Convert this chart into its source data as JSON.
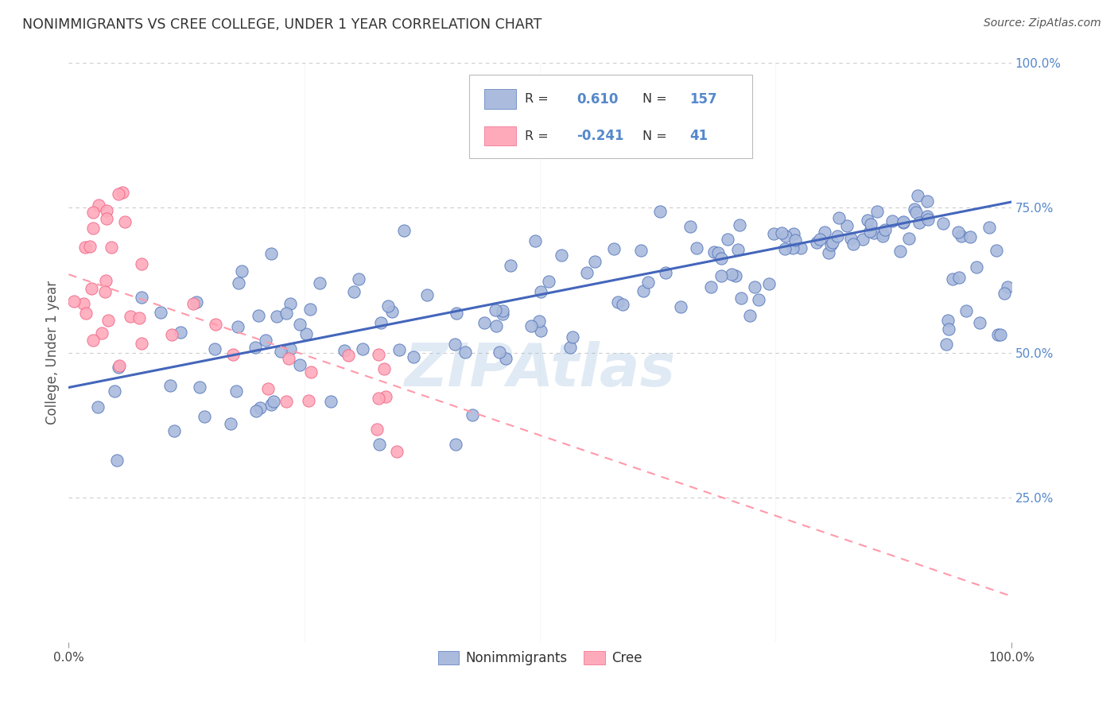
{
  "title": "NONIMMIGRANTS VS CREE COLLEGE, UNDER 1 YEAR CORRELATION CHART",
  "source": "Source: ZipAtlas.com",
  "ylabel": "College, Under 1 year",
  "nonimmigrants_R": 0.61,
  "nonimmigrants_N": 157,
  "cree_R": -0.241,
  "cree_N": 41,
  "blue_fill": "#AABBDD",
  "blue_edge": "#5577BB",
  "pink_fill": "#FFAABB",
  "pink_edge": "#EE6688",
  "blue_line": "#4466BB",
  "pink_line": "#FF99AA",
  "watermark": "ZIPAtlas",
  "background_color": "#FFFFFF",
  "grid_color": "#CCCCCC",
  "right_axis_color": "#5588CC",
  "title_color": "#333333",
  "ylabel_color": "#555555"
}
